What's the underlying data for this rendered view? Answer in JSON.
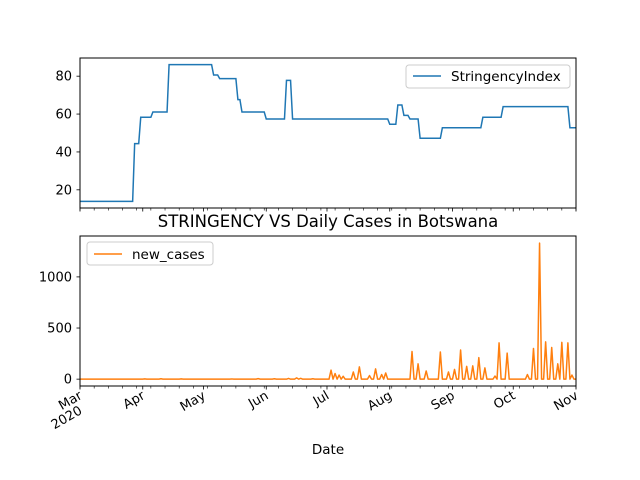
{
  "chart_data": [
    {
      "type": "line",
      "title": "",
      "xlabel": "",
      "ylabel": "",
      "x_range": [
        "2020-03-01",
        "2020-11-01"
      ],
      "ylim": [
        10.4,
        89.6
      ],
      "yticks": [
        20,
        40,
        60,
        80
      ],
      "grid": false,
      "legend_position": "upper right",
      "series": [
        {
          "name": "StringencyIndex",
          "color": "#1f77b4",
          "step_points": [
            [
              "2020-03-01",
              13.9
            ],
            [
              "2020-03-27",
              13.9
            ],
            [
              "2020-03-28",
              44.4
            ],
            [
              "2020-03-30",
              44.4
            ],
            [
              "2020-03-31",
              58.3
            ],
            [
              "2020-04-05",
              58.3
            ],
            [
              "2020-04-06",
              61.1
            ],
            [
              "2020-04-13",
              61.1
            ],
            [
              "2020-04-14",
              86.1
            ],
            [
              "2020-05-05",
              86.1
            ],
            [
              "2020-05-06",
              80.6
            ],
            [
              "2020-05-08",
              80.6
            ],
            [
              "2020-05-09",
              78.7
            ],
            [
              "2020-05-17",
              78.7
            ],
            [
              "2020-05-18",
              67.6
            ],
            [
              "2020-05-19",
              67.6
            ],
            [
              "2020-05-20",
              61.1
            ],
            [
              "2020-05-31",
              61.1
            ],
            [
              "2020-06-01",
              57.4
            ],
            [
              "2020-06-10",
              57.4
            ],
            [
              "2020-06-11",
              77.8
            ],
            [
              "2020-06-13",
              77.8
            ],
            [
              "2020-06-14",
              57.4
            ],
            [
              "2020-07-31",
              57.4
            ],
            [
              "2020-08-01",
              54.6
            ],
            [
              "2020-08-04",
              54.6
            ],
            [
              "2020-08-05",
              64.8
            ],
            [
              "2020-08-07",
              64.8
            ],
            [
              "2020-08-08",
              59.3
            ],
            [
              "2020-08-10",
              59.3
            ],
            [
              "2020-08-11",
              57.4
            ],
            [
              "2020-08-15",
              57.4
            ],
            [
              "2020-08-16",
              47.2
            ],
            [
              "2020-08-26",
              47.2
            ],
            [
              "2020-08-27",
              52.8
            ],
            [
              "2020-09-15",
              52.8
            ],
            [
              "2020-09-16",
              58.3
            ],
            [
              "2020-09-25",
              58.3
            ],
            [
              "2020-09-26",
              63.9
            ],
            [
              "2020-10-28",
              63.9
            ],
            [
              "2020-10-29",
              52.8
            ],
            [
              "2020-11-01",
              52.8
            ]
          ]
        }
      ]
    },
    {
      "type": "line",
      "title": "STRINGENCY VS Daily Cases in Botswana",
      "xlabel": "Date",
      "ylabel": "",
      "x_range": [
        "2020-03-01",
        "2020-11-01"
      ],
      "ylim": [
        -67,
        1400
      ],
      "yticks": [
        0,
        500,
        1000
      ],
      "grid": false,
      "legend_position": "upper left",
      "x_ticks": [
        {
          "date": "2020-03-01",
          "label": "Mar",
          "sublabel": "2020"
        },
        {
          "date": "2020-04-01",
          "label": "Apr"
        },
        {
          "date": "2020-05-01",
          "label": "May"
        },
        {
          "date": "2020-06-01",
          "label": "Jun"
        },
        {
          "date": "2020-07-01",
          "label": "Jul"
        },
        {
          "date": "2020-08-01",
          "label": "Aug"
        },
        {
          "date": "2020-09-01",
          "label": "Sep"
        },
        {
          "date": "2020-10-01",
          "label": "Oct"
        },
        {
          "date": "2020-11-01",
          "label": "Nov"
        }
      ],
      "series": [
        {
          "name": "new_cases",
          "color": "#ff7f0e",
          "peaks": [
            [
              "2020-04-02",
              3
            ],
            [
              "2020-04-10",
              4
            ],
            [
              "2020-04-20",
              3
            ],
            [
              "2020-05-15",
              2
            ],
            [
              "2020-05-28",
              5
            ],
            [
              "2020-06-05",
              4
            ],
            [
              "2020-06-12",
              7
            ],
            [
              "2020-06-16",
              12
            ],
            [
              "2020-06-18",
              8
            ],
            [
              "2020-06-24",
              4
            ],
            [
              "2020-07-03",
              88
            ],
            [
              "2020-07-05",
              55
            ],
            [
              "2020-07-07",
              40
            ],
            [
              "2020-07-09",
              28
            ],
            [
              "2020-07-14",
              70
            ],
            [
              "2020-07-17",
              120
            ],
            [
              "2020-07-22",
              35
            ],
            [
              "2020-07-25",
              100
            ],
            [
              "2020-07-28",
              45
            ],
            [
              "2020-07-30",
              60
            ],
            [
              "2020-08-12",
              270
            ],
            [
              "2020-08-15",
              150
            ],
            [
              "2020-08-19",
              80
            ],
            [
              "2020-08-26",
              265
            ],
            [
              "2020-08-30",
              70
            ],
            [
              "2020-09-02",
              95
            ],
            [
              "2020-09-05",
              285
            ],
            [
              "2020-09-08",
              125
            ],
            [
              "2020-09-11",
              130
            ],
            [
              "2020-09-14",
              210
            ],
            [
              "2020-09-17",
              110
            ],
            [
              "2020-09-22",
              30
            ],
            [
              "2020-09-24",
              355
            ],
            [
              "2020-09-28",
              255
            ],
            [
              "2020-10-08",
              45
            ],
            [
              "2020-10-11",
              300
            ],
            [
              "2020-10-14",
              1330
            ],
            [
              "2020-10-17",
              365
            ],
            [
              "2020-10-20",
              310
            ],
            [
              "2020-10-23",
              150
            ],
            [
              "2020-10-25",
              360
            ],
            [
              "2020-10-28",
              355
            ],
            [
              "2020-10-30",
              40
            ]
          ]
        }
      ]
    }
  ]
}
